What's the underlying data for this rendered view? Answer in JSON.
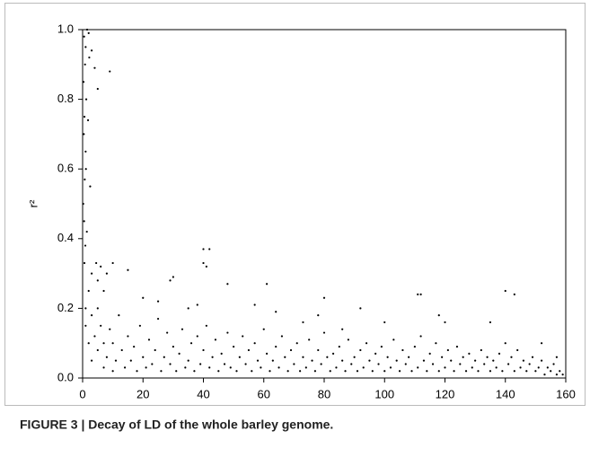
{
  "chart_data": {
    "type": "scatter",
    "y_label": "r²",
    "caption": "FIGURE 3 | Decay of LD of the whole barley genome.",
    "color": "#000000",
    "xlim": [
      0,
      160
    ],
    "xticks": [
      0,
      20,
      40,
      60,
      80,
      100,
      120,
      140,
      160
    ],
    "ylim": [
      0,
      1
    ],
    "yticks": [
      {
        "value": 0,
        "label": "0.0"
      },
      0.2,
      0.4,
      0.6,
      0.8,
      {
        "value": 1,
        "label": "1.0"
      }
    ],
    "x": [
      0.5,
      1,
      1.5,
      2,
      0.8,
      0.3,
      1.2,
      0.6,
      1.8,
      0.4,
      1,
      0.7,
      2.5,
      0.5,
      0.9,
      3,
      4,
      5,
      9,
      2.2,
      1.1,
      0.2,
      1.4,
      0.6,
      3,
      4.5,
      6,
      8,
      10,
      5,
      7,
      15,
      29,
      30,
      40,
      42,
      40,
      41,
      48,
      61,
      111,
      112,
      140,
      143,
      80,
      20,
      25,
      35,
      38,
      57,
      64,
      73,
      78,
      118,
      120,
      100,
      92,
      135,
      152,
      157,
      86,
      1,
      1,
      2,
      2,
      3,
      3,
      4,
      5,
      5,
      6,
      7,
      7,
      8,
      9,
      10,
      10,
      11,
      12,
      13,
      14,
      15,
      16,
      17,
      18,
      19,
      20,
      21,
      22,
      23,
      24,
      25,
      26,
      27,
      28,
      29,
      30,
      31,
      32,
      33,
      34,
      35,
      36,
      37,
      38,
      39,
      40,
      41,
      42,
      43,
      44,
      45,
      46,
      47,
      48,
      49,
      50,
      51,
      52,
      53,
      54,
      55,
      56,
      57,
      58,
      59,
      60,
      61,
      62,
      63,
      64,
      65,
      66,
      67,
      68,
      69,
      70,
      71,
      72,
      73,
      74,
      75,
      76,
      77,
      78,
      79,
      80,
      81,
      82,
      83,
      84,
      85,
      86,
      87,
      88,
      89,
      90,
      91,
      92,
      93,
      94,
      95,
      96,
      97,
      98,
      99,
      100,
      101,
      102,
      103,
      104,
      105,
      106,
      107,
      108,
      109,
      110,
      111,
      112,
      113,
      114,
      115,
      116,
      117,
      118,
      119,
      120,
      121,
      122,
      123,
      124,
      125,
      126,
      127,
      128,
      129,
      130,
      131,
      132,
      133,
      134,
      135,
      136,
      137,
      138,
      139,
      140,
      141,
      142,
      143,
      144,
      145,
      146,
      147,
      148,
      149,
      150,
      151,
      152,
      153,
      154,
      155,
      156,
      157,
      158,
      159
    ],
    "values": [
      0.98,
      0.95,
      1.0,
      0.99,
      0.9,
      0.85,
      0.8,
      0.75,
      0.74,
      0.7,
      0.65,
      0.57,
      0.55,
      0.45,
      0.38,
      0.94,
      0.89,
      0.83,
      0.88,
      0.92,
      0.6,
      0.5,
      0.42,
      0.33,
      0.3,
      0.33,
      0.32,
      0.3,
      0.33,
      0.28,
      0.25,
      0.31,
      0.28,
      0.29,
      0.37,
      0.37,
      0.33,
      0.32,
      0.27,
      0.27,
      0.24,
      0.24,
      0.25,
      0.24,
      0.23,
      0.23,
      0.22,
      0.2,
      0.21,
      0.21,
      0.19,
      0.16,
      0.18,
      0.18,
      0.16,
      0.16,
      0.2,
      0.16,
      0.1,
      0.06,
      0.14,
      0.15,
      0.2,
      0.1,
      0.25,
      0.05,
      0.18,
      0.12,
      0.08,
      0.2,
      0.15,
      0.03,
      0.1,
      0.06,
      0.14,
      0.02,
      0.1,
      0.05,
      0.18,
      0.08,
      0.03,
      0.12,
      0.05,
      0.09,
      0.02,
      0.15,
      0.06,
      0.03,
      0.11,
      0.04,
      0.08,
      0.17,
      0.02,
      0.06,
      0.13,
      0.04,
      0.09,
      0.02,
      0.07,
      0.14,
      0.03,
      0.05,
      0.1,
      0.02,
      0.12,
      0.04,
      0.08,
      0.15,
      0.03,
      0.06,
      0.11,
      0.02,
      0.07,
      0.04,
      0.13,
      0.03,
      0.09,
      0.02,
      0.06,
      0.12,
      0.04,
      0.08,
      0.02,
      0.1,
      0.05,
      0.03,
      0.14,
      0.07,
      0.02,
      0.05,
      0.09,
      0.03,
      0.12,
      0.06,
      0.02,
      0.08,
      0.04,
      0.1,
      0.02,
      0.06,
      0.03,
      0.11,
      0.05,
      0.02,
      0.08,
      0.04,
      0.13,
      0.06,
      0.02,
      0.07,
      0.03,
      0.09,
      0.05,
      0.02,
      0.11,
      0.04,
      0.06,
      0.02,
      0.08,
      0.03,
      0.1,
      0.05,
      0.02,
      0.07,
      0.04,
      0.09,
      0.02,
      0.06,
      0.03,
      0.11,
      0.05,
      0.02,
      0.08,
      0.04,
      0.06,
      0.02,
      0.09,
      0.03,
      0.12,
      0.05,
      0.02,
      0.07,
      0.04,
      0.1,
      0.02,
      0.06,
      0.03,
      0.08,
      0.05,
      0.02,
      0.09,
      0.04,
      0.06,
      0.02,
      0.07,
      0.03,
      0.05,
      0.02,
      0.08,
      0.04,
      0.06,
      0.02,
      0.05,
      0.03,
      0.07,
      0.02,
      0.1,
      0.04,
      0.06,
      0.02,
      0.08,
      0.03,
      0.05,
      0.02,
      0.04,
      0.06,
      0.02,
      0.03,
      0.05,
      0.01,
      0.03,
      0.02,
      0.04,
      0.01,
      0.02,
      0.01
    ]
  }
}
